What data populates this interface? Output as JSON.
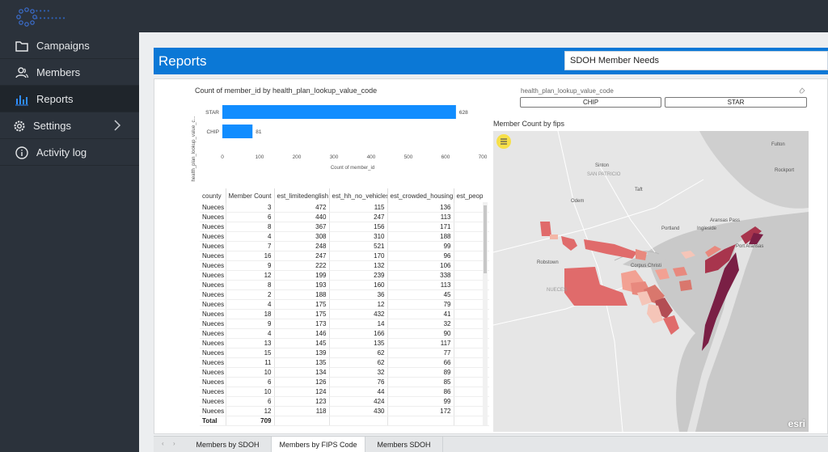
{
  "app": {
    "logo_text_line1": "••••",
    "logo_text_line2": "••••••••"
  },
  "sidebar": {
    "items": [
      {
        "label": "Campaigns",
        "icon": "folder-icon"
      },
      {
        "label": "Members",
        "icon": "members-icon"
      },
      {
        "label": "Reports",
        "icon": "bar-chart-icon",
        "active": true
      },
      {
        "label": "Settings",
        "icon": "gear-icon"
      },
      {
        "label": "Activity log",
        "icon": "info-icon"
      }
    ]
  },
  "header": {
    "title": "Reports",
    "selected_report": "SDOH Member Needs"
  },
  "slicer": {
    "title": "health_plan_lookup_value_code",
    "options": [
      "CHIP",
      "STAR"
    ]
  },
  "chart_data": {
    "type": "bar",
    "orientation": "horizontal",
    "title": "Count of member_id by health_plan_lookup_value_code",
    "xlabel": "Count of member_id",
    "ylabel": "health_plan_lookup_value_c...",
    "categories": [
      "STAR",
      "CHIP"
    ],
    "values": [
      628,
      81
    ],
    "xlim": [
      0,
      700
    ],
    "xticks": [
      "0",
      "100",
      "200",
      "300",
      "400",
      "500",
      "600",
      "700"
    ],
    "color": "#118dff"
  },
  "table": {
    "columns": [
      "county",
      "Member Count",
      "est_limitedenglish",
      "est_hh_no_vehicles",
      "est_crowded_housing",
      "est_peop"
    ],
    "rows": [
      [
        "Nueces",
        "3",
        "472",
        "115",
        "136"
      ],
      [
        "Nueces",
        "6",
        "440",
        "247",
        "113"
      ],
      [
        "Nueces",
        "8",
        "367",
        "156",
        "171"
      ],
      [
        "Nueces",
        "4",
        "308",
        "310",
        "188"
      ],
      [
        "Nueces",
        "7",
        "248",
        "521",
        "99"
      ],
      [
        "Nueces",
        "16",
        "247",
        "170",
        "96"
      ],
      [
        "Nueces",
        "9",
        "222",
        "132",
        "106"
      ],
      [
        "Nueces",
        "12",
        "199",
        "239",
        "338"
      ],
      [
        "Nueces",
        "8",
        "193",
        "160",
        "113"
      ],
      [
        "Nueces",
        "2",
        "188",
        "36",
        "45"
      ],
      [
        "Nueces",
        "4",
        "175",
        "12",
        "79"
      ],
      [
        "Nueces",
        "18",
        "175",
        "432",
        "41"
      ],
      [
        "Nueces",
        "9",
        "173",
        "14",
        "32"
      ],
      [
        "Nueces",
        "4",
        "146",
        "166",
        "90"
      ],
      [
        "Nueces",
        "13",
        "145",
        "135",
        "117"
      ],
      [
        "Nueces",
        "15",
        "139",
        "62",
        "77"
      ],
      [
        "Nueces",
        "11",
        "135",
        "62",
        "66"
      ],
      [
        "Nueces",
        "10",
        "134",
        "32",
        "89"
      ],
      [
        "Nueces",
        "6",
        "126",
        "76",
        "85"
      ],
      [
        "Nueces",
        "10",
        "124",
        "44",
        "86"
      ],
      [
        "Nueces",
        "6",
        "123",
        "424",
        "99"
      ],
      [
        "Nueces",
        "12",
        "118",
        "430",
        "172"
      ]
    ],
    "total_label": "Total",
    "total_value": "709"
  },
  "map": {
    "title": "Member Count by fips",
    "labels": [
      "Sinton",
      "SAN PATRICIO",
      "Taft",
      "Odem",
      "Aransas Pass",
      "Portland",
      "Ingleside",
      "Port Aransas",
      "Robstown",
      "NUECES",
      "Corpus Christi",
      "Rockport",
      "Fulton"
    ],
    "attribution": "esri"
  },
  "tabs": [
    "Members by SDOH",
    "Members by FIPS Code",
    "Members SDOH"
  ],
  "active_tab": "Members by FIPS Code"
}
